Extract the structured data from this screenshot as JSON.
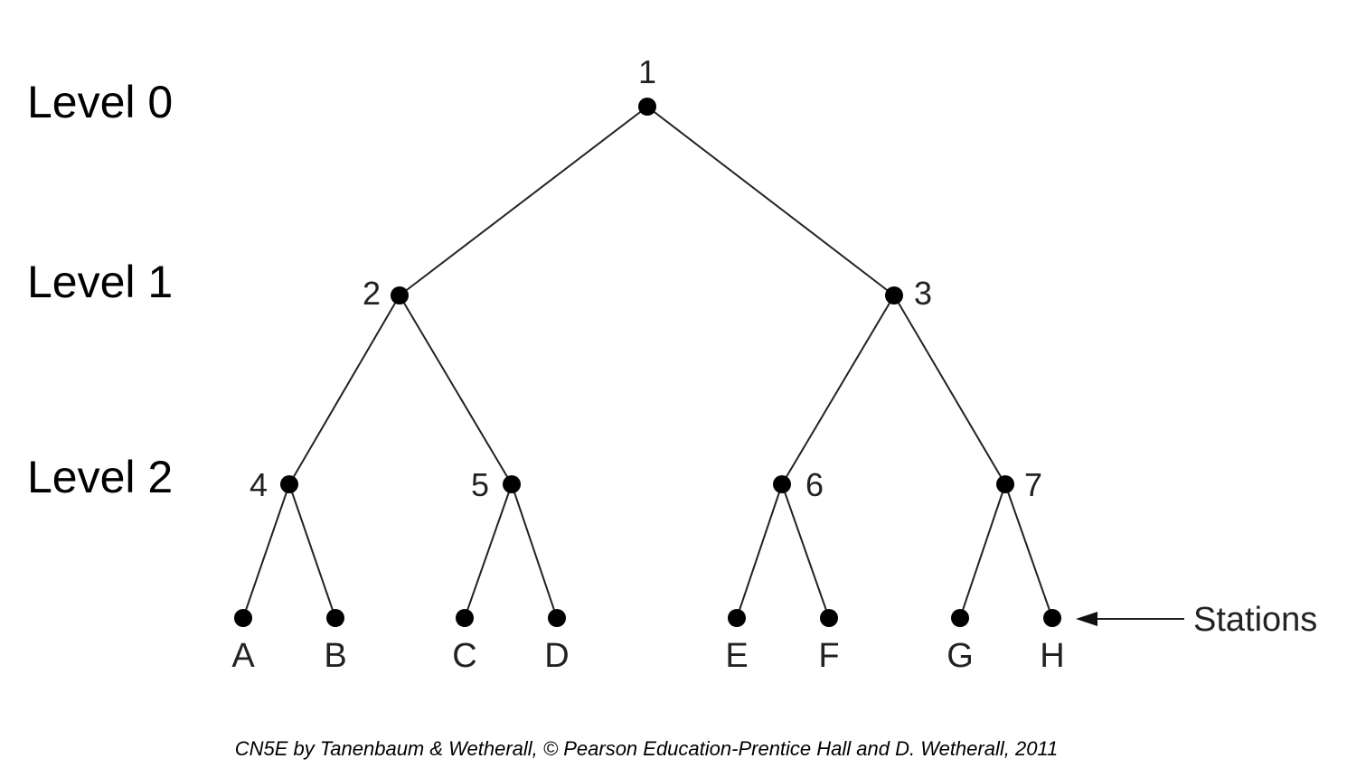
{
  "levels": [
    {
      "id": "level-0",
      "label": "Level 0"
    },
    {
      "id": "level-1",
      "label": "Level 1"
    },
    {
      "id": "level-2",
      "label": "Level 2"
    }
  ],
  "nodes": [
    {
      "id": "1",
      "label": "1",
      "level": 0
    },
    {
      "id": "2",
      "label": "2",
      "level": 1
    },
    {
      "id": "3",
      "label": "3",
      "level": 1
    },
    {
      "id": "4",
      "label": "4",
      "level": 2
    },
    {
      "id": "5",
      "label": "5",
      "level": 2
    },
    {
      "id": "6",
      "label": "6",
      "level": 2
    },
    {
      "id": "7",
      "label": "7",
      "level": 2
    }
  ],
  "stations": [
    {
      "id": "A",
      "label": "A",
      "parent": "4"
    },
    {
      "id": "B",
      "label": "B",
      "parent": "4"
    },
    {
      "id": "C",
      "label": "C",
      "parent": "5"
    },
    {
      "id": "D",
      "label": "D",
      "parent": "5"
    },
    {
      "id": "E",
      "label": "E",
      "parent": "6"
    },
    {
      "id": "F",
      "label": "F",
      "parent": "6"
    },
    {
      "id": "G",
      "label": "G",
      "parent": "7"
    },
    {
      "id": "H",
      "label": "H",
      "parent": "7"
    }
  ],
  "edges": [
    {
      "from": "1",
      "to": "2"
    },
    {
      "from": "1",
      "to": "3"
    },
    {
      "from": "2",
      "to": "4"
    },
    {
      "from": "2",
      "to": "5"
    },
    {
      "from": "3",
      "to": "6"
    },
    {
      "from": "3",
      "to": "7"
    },
    {
      "from": "4",
      "to": "A"
    },
    {
      "from": "4",
      "to": "B"
    },
    {
      "from": "5",
      "to": "C"
    },
    {
      "from": "5",
      "to": "D"
    },
    {
      "from": "6",
      "to": "E"
    },
    {
      "from": "6",
      "to": "F"
    },
    {
      "from": "7",
      "to": "G"
    },
    {
      "from": "7",
      "to": "H"
    }
  ],
  "stations_pointer": {
    "label": "Stations",
    "points_to": "H"
  },
  "credit": "CN5E by Tanenbaum & Wetherall, © Pearson Education-Prentice Hall and D. Wetherall, 2011"
}
